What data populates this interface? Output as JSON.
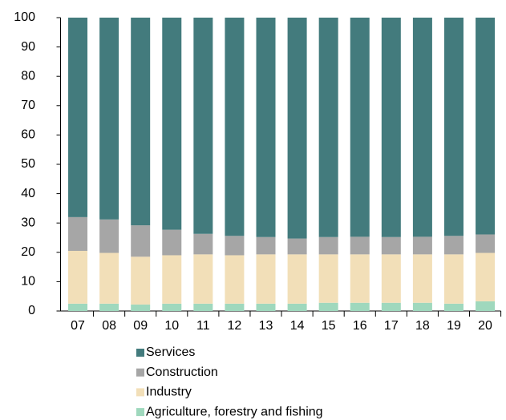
{
  "chart_data": {
    "type": "stacked_bar",
    "categories": [
      "07",
      "08",
      "09",
      "10",
      "11",
      "12",
      "13",
      "14",
      "15",
      "16",
      "17",
      "18",
      "19",
      "20"
    ],
    "series": [
      {
        "name": "Agriculture, forestry and fishing",
        "color": "#9fd8bd",
        "values": [
          2.5,
          2.5,
          2.2,
          2.5,
          2.5,
          2.5,
          2.5,
          2.5,
          2.8,
          2.8,
          2.8,
          2.8,
          2.5,
          3.3
        ]
      },
      {
        "name": "Industry",
        "color": "#f2dfb8",
        "values": [
          18,
          17.3,
          16.3,
          16.5,
          16.8,
          16.5,
          16.8,
          16.8,
          16.5,
          16.5,
          16.5,
          16.5,
          16.8,
          16.5
        ]
      },
      {
        "name": "Construction",
        "color": "#a6a6a6",
        "values": [
          11.5,
          11.4,
          10.7,
          8.7,
          7,
          6.6,
          5.9,
          5.4,
          5.9,
          6,
          5.9,
          6,
          6.3,
          6.3
        ]
      },
      {
        "name": "Services",
        "color": "#437b7d",
        "values": [
          68,
          68.8,
          70.8,
          72.3,
          73.7,
          74.4,
          74.8,
          75.3,
          74.8,
          74.7,
          74.8,
          74.7,
          74.4,
          73.9
        ]
      }
    ],
    "ylim": [
      0,
      100
    ],
    "yticks": [
      0,
      10,
      20,
      30,
      40,
      50,
      60,
      70,
      80,
      90,
      100
    ],
    "grid": false
  }
}
